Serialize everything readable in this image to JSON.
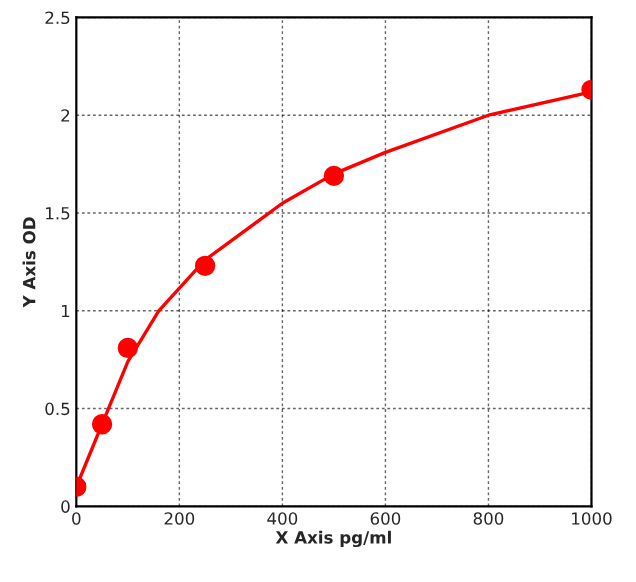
{
  "chart_data": {
    "type": "scatter",
    "xlabel": "X Axis pg/ml",
    "ylabel": "Y Axis OD",
    "x": [
      0,
      50,
      100,
      250,
      500,
      1000
    ],
    "series": [
      {
        "color": "#ff0000",
        "values": [
          0.1,
          0.42,
          0.81,
          1.23,
          1.69,
          2.13
        ],
        "marker": "circle"
      },
      {
        "type": "line",
        "color": "#ff0000",
        "x": [
          0,
          25,
          50,
          100,
          160,
          250,
          400,
          500,
          600,
          800,
          1000
        ],
        "values": [
          0.1,
          0.26,
          0.42,
          0.74,
          1.0,
          1.26,
          1.55,
          1.7,
          1.81,
          2.0,
          2.12
        ],
        "marker": "none",
        "line_style": "solid"
      }
    ],
    "xlim": [
      0,
      1000
    ],
    "xticks": [
      0,
      200,
      400,
      600,
      800,
      1000
    ],
    "ylim": [
      0,
      2.5
    ],
    "yticks": [
      0,
      0.5,
      1,
      1.5,
      2,
      2.5
    ],
    "grid": true,
    "legend": false
  }
}
